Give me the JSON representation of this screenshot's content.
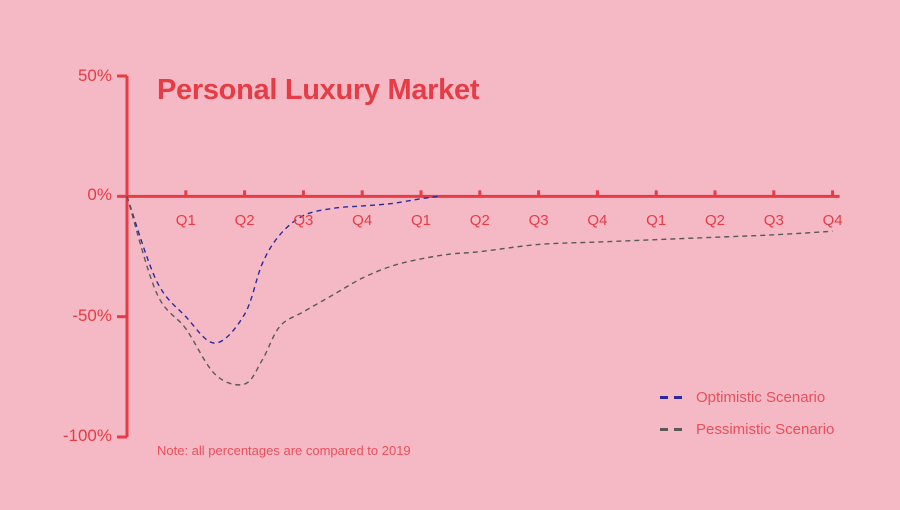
{
  "chart_data": {
    "type": "line",
    "title": "Personal Luxury Market",
    "note": "Note: all percentages are compared to 2019",
    "yticks": [
      "50%",
      "0%",
      "-50%",
      "-100%"
    ],
    "ylim": [
      -100,
      50
    ],
    "categories": [
      "Q1",
      "Q2",
      "Q3",
      "Q4",
      "Q1",
      "Q2",
      "Q3",
      "Q4",
      "Q1",
      "Q2",
      "Q3",
      "Q4"
    ],
    "grid": false,
    "legend_position": "bottom-right",
    "series": [
      {
        "name": "Optimistic Scenario",
        "color": "#2a2a9c",
        "x": [
          0,
          0.5,
          1,
          1.5,
          2,
          2.3,
          2.6,
          3,
          3.5,
          4,
          4.5,
          5,
          5.3
        ],
        "y": [
          0,
          -35,
          -50,
          -61,
          -49,
          -28,
          -16,
          -8,
          -5,
          -4,
          -3,
          -1,
          0
        ]
      },
      {
        "name": "Pessimistic Scenario",
        "color": "#595959",
        "x": [
          0,
          0.5,
          1,
          1.5,
          2,
          2.3,
          2.6,
          3,
          3.5,
          4,
          4.5,
          5,
          5.5,
          6,
          7,
          8,
          9,
          10,
          11,
          12
        ],
        "y": [
          0,
          -40,
          -55,
          -74,
          -78,
          -68,
          -54,
          -48,
          -41,
          -34,
          -29,
          -26,
          -24,
          -23,
          -20,
          -19,
          -18,
          -17,
          -16,
          -14.5
        ]
      }
    ]
  }
}
